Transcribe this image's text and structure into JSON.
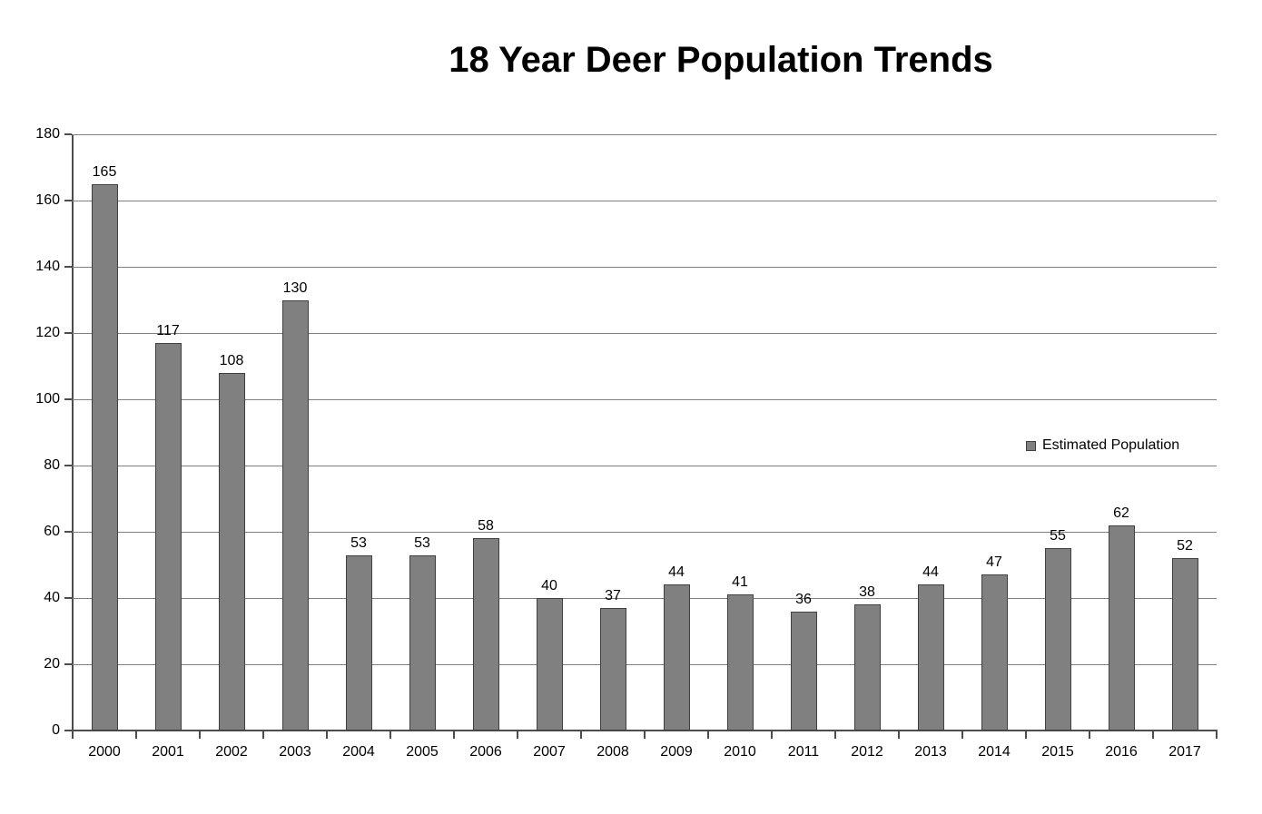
{
  "chart_data": {
    "type": "bar",
    "title": "18 Year Deer Population Trends",
    "categories": [
      "2000",
      "2001",
      "2002",
      "2003",
      "2004",
      "2005",
      "2006",
      "2007",
      "2008",
      "2009",
      "2010",
      "2011",
      "2012",
      "2013",
      "2014",
      "2015",
      "2016",
      "2017"
    ],
    "series": [
      {
        "name": "Estimated Population",
        "values": [
          165,
          117,
          108,
          130,
          53,
          53,
          58,
          40,
          37,
          44,
          41,
          36,
          38,
          44,
          47,
          55,
          62,
          52
        ]
      }
    ],
    "data_labels": true,
    "xlabel": "",
    "ylabel": "",
    "ylim": [
      0,
      180
    ],
    "yticks": [
      0,
      20,
      40,
      60,
      80,
      100,
      120,
      140,
      160,
      180
    ],
    "grid": true,
    "legend_position": "right",
    "colors": {
      "bar_fill": "#808080",
      "bar_border": "#404040",
      "gridline": "#808080",
      "axis": "#4d4d4d",
      "text": "#000000",
      "background": "#ffffff"
    }
  },
  "legend": {
    "label": "Estimated Population"
  }
}
